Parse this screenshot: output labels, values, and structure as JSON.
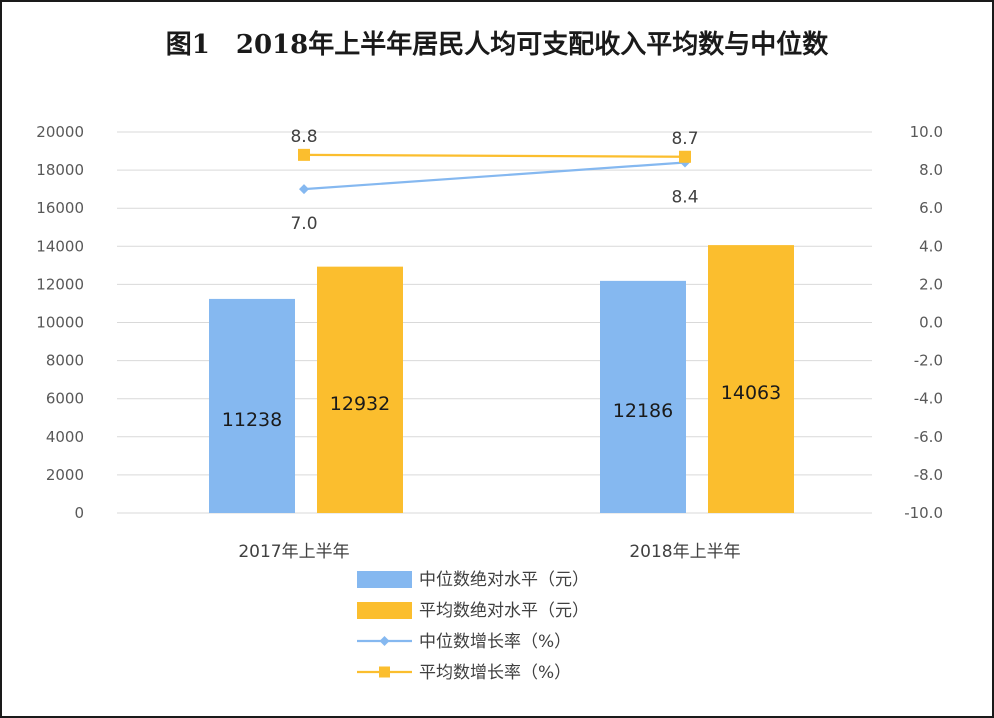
{
  "title": "图1　2018年上半年居民人均可支配收入平均数与中位数",
  "chart_data": {
    "type": "bar",
    "categories": [
      "2017年上半年",
      "2018年上半年"
    ],
    "series": [
      {
        "name": "中位数绝对水平（元）",
        "kind": "bar",
        "axis": "left",
        "color": "#85b8f0",
        "values": [
          11238,
          12186
        ]
      },
      {
        "name": "平均数绝对水平（元）",
        "kind": "bar",
        "axis": "left",
        "color": "#fbbe2e",
        "values": [
          12932,
          14063
        ]
      },
      {
        "name": "中位数增长率（%）",
        "kind": "line",
        "axis": "right",
        "marker": "diamond",
        "color": "#85b8f0",
        "values": [
          7.0,
          8.4
        ],
        "labels": [
          "7.0",
          "8.4"
        ]
      },
      {
        "name": "平均数增长率（%）",
        "kind": "line",
        "axis": "right",
        "marker": "square",
        "color": "#fbbe2e",
        "values": [
          8.8,
          8.7
        ],
        "labels": [
          "8.8",
          "8.7"
        ]
      }
    ],
    "bar_labels": [
      [
        "11238",
        "12186"
      ],
      [
        "12932",
        "14063"
      ]
    ],
    "y_left": {
      "min": 0,
      "max": 20000,
      "step": 2000,
      "ticks": [
        "0",
        "2000",
        "4000",
        "6000",
        "8000",
        "10000",
        "12000",
        "14000",
        "16000",
        "18000",
        "20000"
      ]
    },
    "y_right": {
      "min": -10,
      "max": 10,
      "step": 2,
      "ticks": [
        "-10.0",
        "-8.0",
        "-6.0",
        "-4.0",
        "-2.0",
        "0.0",
        "2.0",
        "4.0",
        "6.0",
        "8.0",
        "10.0"
      ]
    },
    "grid": true,
    "legend_position": "bottom"
  }
}
